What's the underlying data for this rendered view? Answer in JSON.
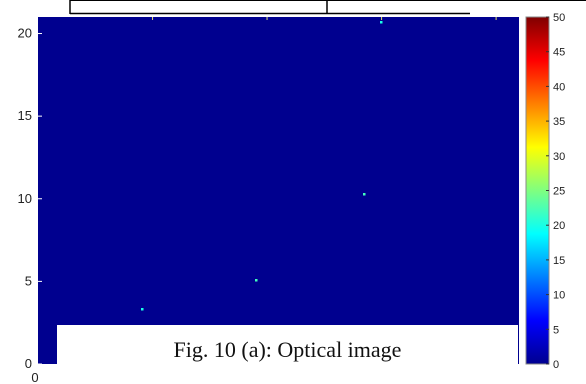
{
  "caption": "Fig. 10 (a): Optical image",
  "chart_data": {
    "type": "heatmap",
    "title": "",
    "xlabel": "",
    "ylabel": "",
    "xlim": [
      0,
      30
    ],
    "ylim": [
      0,
      21
    ],
    "x_ticks": [
      "0"
    ],
    "y_ticks": [
      "0",
      "5",
      "10",
      "15",
      "20"
    ],
    "background_value": 0,
    "points": [
      {
        "x": 31,
        "y": 21,
        "value": 20
      },
      {
        "x": 30,
        "y": 10.3,
        "value": 22
      },
      {
        "x": 20,
        "y": 5,
        "value": 22
      },
      {
        "x": 10,
        "y": 3.3,
        "value": 20
      },
      {
        "x": 10,
        "y": 21,
        "value": 2
      },
      {
        "x": 20,
        "y": 21,
        "value": 2
      }
    ],
    "colorbar": {
      "colormap": "jet",
      "min": 0,
      "max": 50,
      "ticks": [
        "0",
        "5",
        "10",
        "15",
        "20",
        "25",
        "30",
        "35",
        "40",
        "45",
        "50"
      ]
    }
  }
}
